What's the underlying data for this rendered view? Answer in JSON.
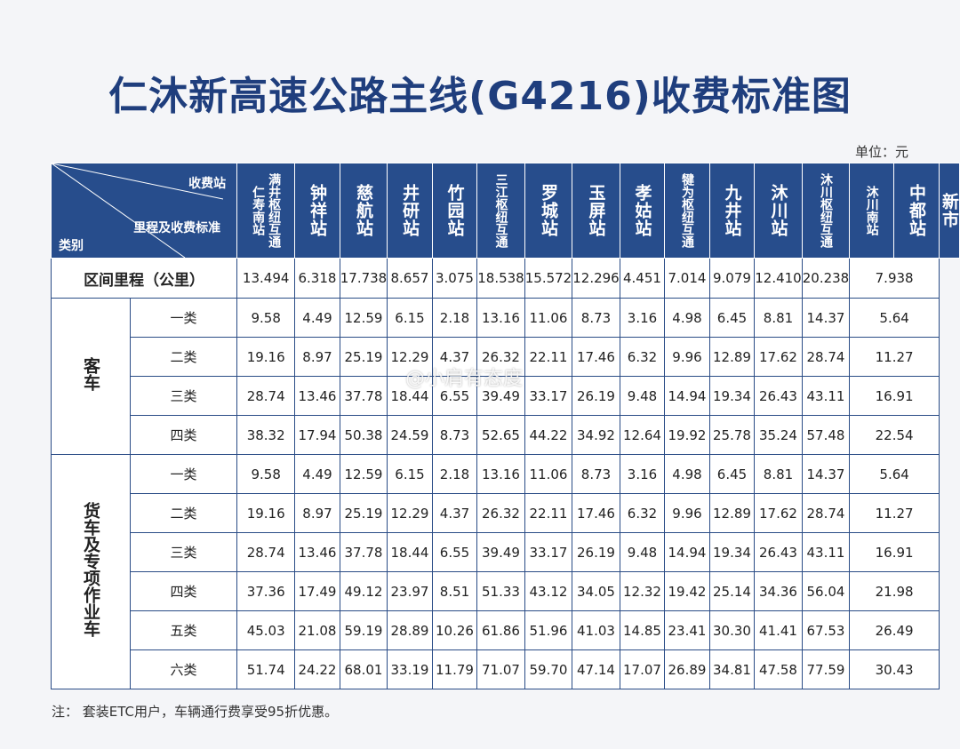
{
  "title": "仁沐新高速公路主线(G4216)收费标准图",
  "unit": "单位：元",
  "note": "注：  套装ETC用户，车辆通行费享受95折优惠。",
  "watermark": "@小肩有态度",
  "header": {
    "station_label": "收费站",
    "mileage_label": "里程及收费标准",
    "category_label": "类别"
  },
  "stations": [
    {
      "line1": "满井枢纽互通",
      "line2": "仁寿南站"
    },
    {
      "line1": "钟祥站"
    },
    {
      "line1": "慈航站"
    },
    {
      "line1": "井研站"
    },
    {
      "line1": "竹园站"
    },
    {
      "line1": "三江枢纽互通"
    },
    {
      "line1": "罗城站"
    },
    {
      "line1": "玉屏站"
    },
    {
      "line1": "孝姑站"
    },
    {
      "line1": "犍为枢纽互通"
    },
    {
      "line1": "九井站"
    },
    {
      "line1": "沐川站"
    },
    {
      "line1": "沐川枢纽互通"
    },
    {
      "line1": "沐川南站"
    },
    {
      "line1": "中都站"
    },
    {
      "line1": "新市"
    }
  ],
  "mileage": {
    "label": "区间里程（公里）",
    "values": [
      "13.494",
      "6.318",
      "17.738",
      "8.657",
      "3.075",
      "18.538",
      "15.572",
      "12.296",
      "4.451",
      "7.014",
      "9.079",
      "12.410",
      "20.238",
      "7.938"
    ]
  },
  "passenger": {
    "label": "客车",
    "rows": [
      {
        "cls": "一类",
        "values": [
          "9.58",
          "4.49",
          "12.59",
          "6.15",
          "2.18",
          "13.16",
          "11.06",
          "8.73",
          "3.16",
          "4.98",
          "6.45",
          "8.81",
          "14.37",
          "5.64"
        ]
      },
      {
        "cls": "二类",
        "values": [
          "19.16",
          "8.97",
          "25.19",
          "12.29",
          "4.37",
          "26.32",
          "22.11",
          "17.46",
          "6.32",
          "9.96",
          "12.89",
          "17.62",
          "28.74",
          "11.27"
        ]
      },
      {
        "cls": "三类",
        "values": [
          "28.74",
          "13.46",
          "37.78",
          "18.44",
          "6.55",
          "39.49",
          "33.17",
          "26.19",
          "9.48",
          "14.94",
          "19.34",
          "26.43",
          "43.11",
          "16.91"
        ]
      },
      {
        "cls": "四类",
        "values": [
          "38.32",
          "17.94",
          "50.38",
          "24.59",
          "8.73",
          "52.65",
          "44.22",
          "34.92",
          "12.64",
          "19.92",
          "25.78",
          "35.24",
          "57.48",
          "22.54"
        ]
      }
    ]
  },
  "freight": {
    "label": "货车及专项作业车",
    "rows": [
      {
        "cls": "一类",
        "values": [
          "9.58",
          "4.49",
          "12.59",
          "6.15",
          "2.18",
          "13.16",
          "11.06",
          "8.73",
          "3.16",
          "4.98",
          "6.45",
          "8.81",
          "14.37",
          "5.64"
        ]
      },
      {
        "cls": "二类",
        "values": [
          "19.16",
          "8.97",
          "25.19",
          "12.29",
          "4.37",
          "26.32",
          "22.11",
          "17.46",
          "6.32",
          "9.96",
          "12.89",
          "17.62",
          "28.74",
          "11.27"
        ]
      },
      {
        "cls": "三类",
        "values": [
          "28.74",
          "13.46",
          "37.78",
          "18.44",
          "6.55",
          "39.49",
          "33.17",
          "26.19",
          "9.48",
          "14.94",
          "19.34",
          "26.43",
          "43.11",
          "16.91"
        ]
      },
      {
        "cls": "四类",
        "values": [
          "37.36",
          "17.49",
          "49.12",
          "23.97",
          "8.51",
          "51.33",
          "43.12",
          "34.05",
          "12.32",
          "19.42",
          "25.14",
          "34.36",
          "56.04",
          "21.98"
        ]
      },
      {
        "cls": "五类",
        "values": [
          "45.03",
          "21.08",
          "59.19",
          "28.89",
          "10.26",
          "61.86",
          "51.96",
          "41.03",
          "14.85",
          "23.41",
          "30.30",
          "41.41",
          "67.53",
          "26.49"
        ]
      },
      {
        "cls": "六类",
        "values": [
          "51.74",
          "24.22",
          "68.01",
          "33.19",
          "11.79",
          "71.07",
          "59.70",
          "47.14",
          "17.07",
          "26.89",
          "34.81",
          "47.58",
          "77.59",
          "30.43"
        ]
      }
    ]
  }
}
